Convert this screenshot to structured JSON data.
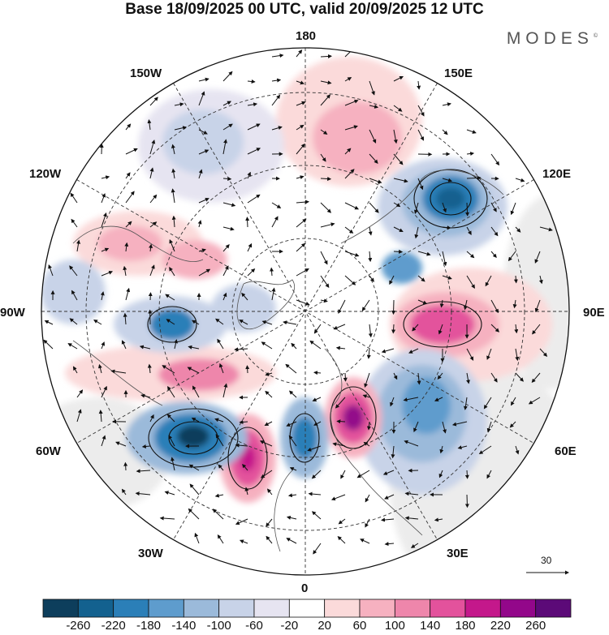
{
  "title": "Base 18/09/2025 00 UTC, valid 20/09/2025 12 UTC",
  "brand": "MODES",
  "brand_mark": "©",
  "labels": {
    "lon_180": "180",
    "lon_150e": "150E",
    "lon_120e": "120E",
    "lon_90e": "90E",
    "lon_60e": "60E",
    "lon_30e": "30E",
    "lon_0": "0",
    "lon_30w": "30W",
    "lon_60w": "60W",
    "lon_90w": "90W",
    "lon_120w": "120W",
    "lon_150w": "150W"
  },
  "wind_scale_label": "30",
  "colorbar": {
    "ticks": [
      "-260",
      "-220",
      "-180",
      "-140",
      "-100",
      "-60",
      "-20",
      "20",
      "60",
      "100",
      "140",
      "180",
      "220",
      "260"
    ],
    "colors": [
      "#0d3e5c",
      "#13618f",
      "#2b7fb8",
      "#5e9ccd",
      "#9bbada",
      "#c8d3e8",
      "#e6e4f1",
      "#ffffff",
      "#fbdada",
      "#f6b1c0",
      "#ee86ab",
      "#e3529c",
      "#c4188b",
      "#93078a",
      "#5c0a78"
    ]
  },
  "chart_data": {
    "type": "map",
    "projection": "north polar stereographic",
    "field": "height anomaly (shaded) with wind vectors",
    "centers": [
      {
        "region": "east Siberia ~120E",
        "sign": "negative",
        "value": -200
      },
      {
        "region": "central Asia ~90E",
        "sign": "positive",
        "value": 160
      },
      {
        "region": "Europe ~20E",
        "sign": "positive",
        "value": 200
      },
      {
        "region": "west Russia ~45E",
        "sign": "negative",
        "value": -140
      },
      {
        "region": "North Atlantic ~50W",
        "sign": "negative",
        "value": -200
      },
      {
        "region": "mid Atlantic ~35W",
        "sign": "positive",
        "value": 180
      },
      {
        "region": "Canada ~90W",
        "sign": "negative",
        "value": -140
      },
      {
        "region": "Hudson region ~75W",
        "sign": "positive",
        "value": 120
      },
      {
        "region": "Greenland Sea ~10W",
        "sign": "negative",
        "value": -140
      },
      {
        "region": "Bering ~170E",
        "sign": "positive",
        "value": 80
      },
      {
        "region": "Alaska ~120W",
        "sign": "positive",
        "value": 120
      }
    ]
  }
}
